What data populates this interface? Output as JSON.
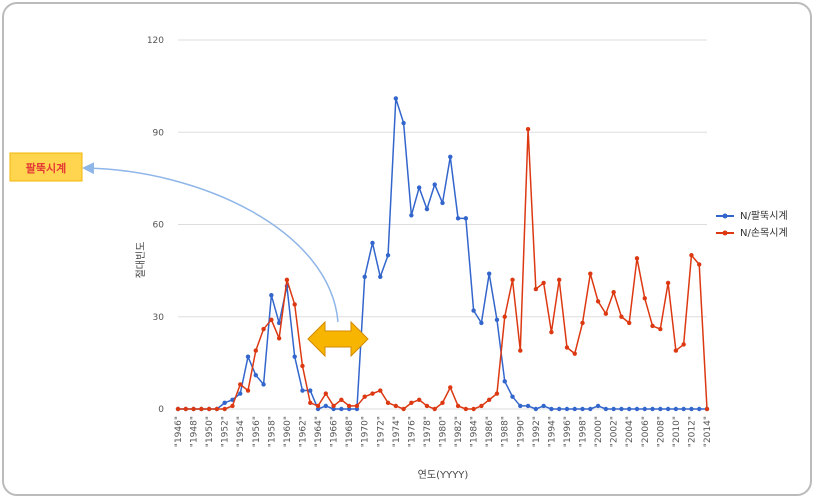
{
  "colors": {
    "series_blue": "#3366cc",
    "series_red": "#dc3912",
    "grid": "#dddddd",
    "frame": "#bbbbbb",
    "callout_fill": "#ffd54f",
    "callout_text": "#e53935",
    "arrow_fill": "#f7b500",
    "arrow_stroke": "#d28a00",
    "curve": "#8fb6e8"
  },
  "callout": {
    "label": "팔뚝시계"
  },
  "chart_data": {
    "type": "line",
    "xlabel": "연도(YYYY)",
    "ylabel": "절대빈도",
    "ylim": [
      0,
      120
    ],
    "yticks": [
      0,
      30,
      60,
      90,
      120
    ],
    "grid": true,
    "legend_position": "right",
    "x": [
      1946,
      1947,
      1948,
      1949,
      1950,
      1951,
      1952,
      1953,
      1954,
      1955,
      1956,
      1957,
      1958,
      1959,
      1960,
      1961,
      1962,
      1963,
      1964,
      1965,
      1966,
      1967,
      1968,
      1969,
      1970,
      1971,
      1972,
      1973,
      1974,
      1975,
      1976,
      1977,
      1978,
      1979,
      1980,
      1981,
      1982,
      1983,
      1984,
      1985,
      1986,
      1987,
      1988,
      1989,
      1990,
      1991,
      1992,
      1993,
      1994,
      1995,
      1996,
      1997,
      1998,
      1999,
      2000,
      2001,
      2002,
      2003,
      2004,
      2005,
      2006,
      2007,
      2008,
      2009,
      2010,
      2011,
      2012,
      2013,
      2014
    ],
    "x_tick_labels": [
      "\"1946\"",
      "\"1948\"",
      "\"1950\"",
      "\"1952\"",
      "\"1954\"",
      "\"1956\"",
      "\"1958\"",
      "\"1960\"",
      "\"1962\"",
      "\"1964\"",
      "\"1966\"",
      "\"1968\"",
      "\"1970\"",
      "\"1972\"",
      "\"1974\"",
      "\"1976\"",
      "\"1978\"",
      "\"1980\"",
      "\"1982\"",
      "\"1984\"",
      "\"1986\"",
      "\"1988\"",
      "\"1990\"",
      "\"1992\"",
      "\"1994\"",
      "\"1996\"",
      "\"1998\"",
      "\"2000\"",
      "\"2002\"",
      "\"2004\"",
      "\"2006\"",
      "\"2008\"",
      "\"2010\"",
      "\"2012\"",
      "\"2014\""
    ],
    "series": [
      {
        "name": "N/팔뚝시계",
        "color": "#3366cc",
        "values": [
          0,
          0,
          0,
          0,
          0,
          0,
          2,
          3,
          5,
          17,
          11,
          8,
          37,
          28,
          40,
          17,
          6,
          6,
          0,
          1,
          0,
          0,
          0,
          0,
          43,
          54,
          43,
          50,
          101,
          93,
          63,
          72,
          65,
          73,
          67,
          82,
          62,
          62,
          32,
          28,
          44,
          29,
          9,
          4,
          1,
          1,
          0,
          1,
          0,
          0,
          0,
          0,
          0,
          0,
          1,
          0,
          0,
          0,
          0,
          0,
          0,
          0,
          0,
          0,
          0,
          0,
          0,
          0,
          0
        ]
      },
      {
        "name": "N/손목시계",
        "color": "#dc3912",
        "values": [
          0,
          0,
          0,
          0,
          0,
          0,
          0,
          1,
          8,
          6,
          19,
          26,
          29,
          23,
          42,
          34,
          14,
          2,
          1,
          5,
          1,
          3,
          1,
          1,
          4,
          5,
          6,
          2,
          1,
          0,
          2,
          3,
          1,
          0,
          2,
          7,
          1,
          0,
          0,
          1,
          3,
          5,
          30,
          42,
          19,
          91,
          39,
          41,
          25,
          42,
          20,
          18,
          28,
          44,
          35,
          31,
          38,
          30,
          28,
          49,
          36,
          27,
          26,
          41,
          19,
          21,
          50,
          47,
          0
        ]
      }
    ]
  }
}
